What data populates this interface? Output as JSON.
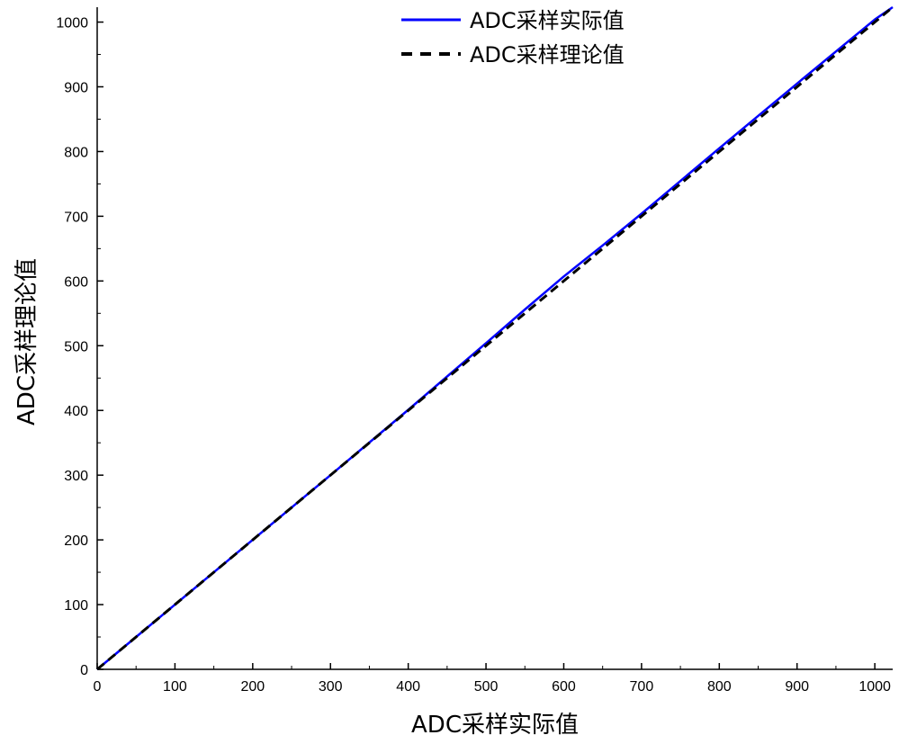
{
  "chart_data": {
    "type": "line",
    "xlabel": "ADC采样实际值",
    "ylabel": "ADC采样理论值",
    "xlim": [
      0,
      1023
    ],
    "ylim": [
      0,
      1023
    ],
    "xticks": [
      0,
      100,
      200,
      300,
      400,
      500,
      600,
      700,
      800,
      900,
      1000
    ],
    "yticks": [
      0,
      100,
      200,
      300,
      400,
      500,
      600,
      700,
      800,
      900,
      1000
    ],
    "grid": false,
    "legend_position": "top-center",
    "series": [
      {
        "name": "ADC采样实际值",
        "color": "#0000ff",
        "style": "solid",
        "x": [
          0,
          100,
          200,
          300,
          400,
          500,
          550,
          600,
          650,
          700,
          800,
          900,
          1000,
          1023
        ],
        "y": [
          0,
          100,
          200,
          300,
          401,
          504,
          556,
          607,
          655,
          704,
          805,
          905,
          1004,
          1023
        ]
      },
      {
        "name": "ADC采样理论值",
        "color": "#000000",
        "style": "dashed",
        "x": [
          0,
          1023
        ],
        "y": [
          0,
          1023
        ]
      }
    ]
  }
}
